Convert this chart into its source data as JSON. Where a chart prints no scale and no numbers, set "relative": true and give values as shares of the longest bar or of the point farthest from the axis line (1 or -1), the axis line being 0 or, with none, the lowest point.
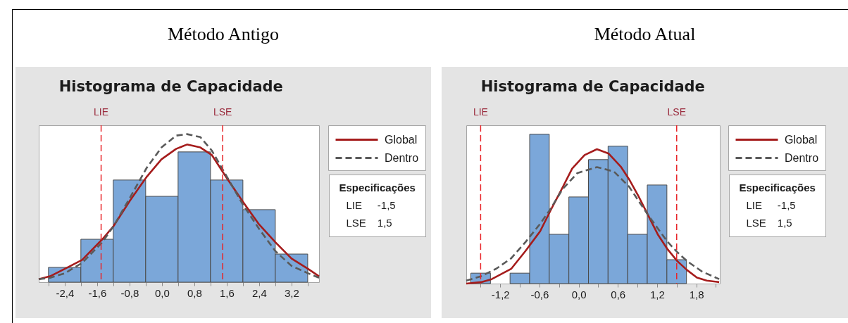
{
  "chart_data": [
    {
      "type": "histogram",
      "title": "Método Antigo",
      "subtitle": "Histograma de Capacidade",
      "relative": true,
      "bins": [
        -2.8,
        -2,
        -1.2,
        -0.4,
        0.4,
        1.2,
        2,
        2.8,
        3.6
      ],
      "series": [
        {
          "color": "#7ba7d9",
          "values": [
            0.1,
            0.29,
            0.69,
            0.58,
            0.88,
            0.69,
            0.49,
            0.19
          ]
        },
        {
          "name": "Global",
          "type": "line",
          "color": "#a51c1c",
          "line_style": "solid",
          "x": [
            -3.04,
            -2.76,
            -2.4,
            -1.97,
            -1.47,
            -1.19,
            -0.79,
            -0.38,
            -0.01,
            0.35,
            0.62,
            0.95,
            1.23,
            1.61,
            2.01,
            2.4,
            2.8,
            3.2,
            3.61,
            3.88
          ],
          "values": [
            0.02,
            0.04,
            0.09,
            0.15,
            0.29,
            0.38,
            0.55,
            0.71,
            0.83,
            0.9,
            0.93,
            0.91,
            0.86,
            0.7,
            0.54,
            0.39,
            0.27,
            0.16,
            0.09,
            0.04
          ]
        },
        {
          "name": "Dentro",
          "type": "line",
          "color": "#5a5a5a",
          "line_style": "dashed",
          "x": [
            -3.04,
            -2.76,
            -2.4,
            -1.97,
            -1.47,
            -1.19,
            -0.79,
            -0.38,
            -0.01,
            0.35,
            0.62,
            0.95,
            1.23,
            1.61,
            2.01,
            2.4,
            2.8,
            3.2,
            3.61,
            3.88
          ],
          "values": [
            0.02,
            0.03,
            0.06,
            0.13,
            0.27,
            0.38,
            0.57,
            0.77,
            0.91,
            0.99,
            1,
            0.98,
            0.89,
            0.71,
            0.52,
            0.36,
            0.21,
            0.11,
            0.06,
            0.03
          ]
        }
      ],
      "xlim": [
        -3.04,
        3.88
      ],
      "xticks": [
        {
          "value": -2.8,
          "label": null
        },
        {
          "value": -2.4,
          "label": "-2,4"
        },
        {
          "value": -2,
          "label": null
        },
        {
          "value": -1.6,
          "label": "-1,6"
        },
        {
          "value": -1.2,
          "label": null
        },
        {
          "value": -0.8,
          "label": "-0,8"
        },
        {
          "value": -0.4,
          "label": null
        },
        {
          "value": 0,
          "label": "0,0"
        },
        {
          "value": 0.4,
          "label": null
        },
        {
          "value": 0.8,
          "label": "0,8"
        },
        {
          "value": 1.2,
          "label": null
        },
        {
          "value": 1.6,
          "label": "1,6"
        },
        {
          "value": 2,
          "label": null
        },
        {
          "value": 2.4,
          "label": "2,4"
        },
        {
          "value": 2.8,
          "label": null
        },
        {
          "value": 3.2,
          "label": "3,2"
        },
        {
          "value": 3.6,
          "label": null
        }
      ],
      "ref_lines": [
        {
          "axis": "x",
          "value": -1.5,
          "label": "LIE",
          "color": "#e8262a",
          "line_style": "dashed"
        },
        {
          "axis": "x",
          "value": 1.5,
          "label": "LSE",
          "color": "#e8262a",
          "line_style": "dashed"
        }
      ],
      "legend": "right",
      "annotations": [
        "Especificações",
        "LIE -1,5",
        "LSE 1,5"
      ]
    },
    {
      "type": "histogram",
      "title": "Método Atual",
      "subtitle": "Histograma de Capacidade",
      "relative": true,
      "bins": [
        -1.65,
        -1.35,
        -1.05,
        -0.75,
        -0.45,
        -0.15,
        0.15,
        0.45,
        0.75,
        1.05,
        1.35,
        1.65
      ],
      "series": [
        {
          "color": "#7ba7d9",
          "values": [
            0.07,
            null,
            0.07,
            1,
            0.33,
            0.58,
            0.83,
            0.92,
            0.33,
            0.66,
            0.16
          ]
        },
        {
          "name": "Global",
          "type": "line",
          "color": "#a51c1c",
          "line_style": "solid",
          "x": [
            -1.72,
            -1.49,
            -1.33,
            -1.03,
            -0.81,
            -0.59,
            -0.43,
            -0.25,
            -0.1,
            0.09,
            0.28,
            0.46,
            0.65,
            0.77,
            0.91,
            1.06,
            1.21,
            1.36,
            1.51,
            1.66,
            1.81,
            1.96,
            2.15
          ],
          "values": [
            0,
            0.01,
            0.03,
            0.1,
            0.22,
            0.35,
            0.49,
            0.64,
            0.77,
            0.86,
            0.9,
            0.87,
            0.78,
            0.7,
            0.59,
            0.46,
            0.33,
            0.23,
            0.15,
            0.09,
            0.04,
            0.02,
            0.01
          ]
        },
        {
          "name": "Dentro",
          "type": "line",
          "color": "#5a5a5a",
          "line_style": "dashed",
          "x": [
            -1.72,
            -1.49,
            -1.26,
            -1.03,
            -0.81,
            -0.59,
            -0.43,
            -0.25,
            -0.02,
            0.28,
            0.54,
            0.77,
            1.06,
            1.21,
            1.36,
            1.51,
            1.66,
            1.89,
            2.15
          ],
          "values": [
            0.02,
            0.05,
            0.1,
            0.17,
            0.28,
            0.4,
            0.5,
            0.63,
            0.74,
            0.78,
            0.75,
            0.65,
            0.46,
            0.37,
            0.28,
            0.21,
            0.15,
            0.08,
            0.03
          ]
        }
      ],
      "xlim": [
        -1.72,
        2.16
      ],
      "xticks": [
        {
          "value": -1.5,
          "label": null
        },
        {
          "value": -1.2,
          "label": "-1,2"
        },
        {
          "value": -0.9,
          "label": null
        },
        {
          "value": -0.6,
          "label": "-0,6"
        },
        {
          "value": -0.3,
          "label": null
        },
        {
          "value": 0,
          "label": "0,0"
        },
        {
          "value": 0.3,
          "label": null
        },
        {
          "value": 0.6,
          "label": "0,6"
        },
        {
          "value": 0.9,
          "label": null
        },
        {
          "value": 1.2,
          "label": "1,2"
        },
        {
          "value": 1.5,
          "label": null
        },
        {
          "value": 1.8,
          "label": "1,8"
        },
        {
          "value": 2.1,
          "label": null
        }
      ],
      "ref_lines": [
        {
          "axis": "x",
          "value": -1.5,
          "label": "LIE",
          "color": "#e8262a",
          "line_style": "dashed"
        },
        {
          "axis": "x",
          "value": 1.5,
          "label": "LSE",
          "color": "#e8262a",
          "line_style": "dashed"
        }
      ],
      "legend": "right",
      "annotations": [
        "Especificações",
        "LIE -1,5",
        "LSE 1,5"
      ]
    }
  ]
}
